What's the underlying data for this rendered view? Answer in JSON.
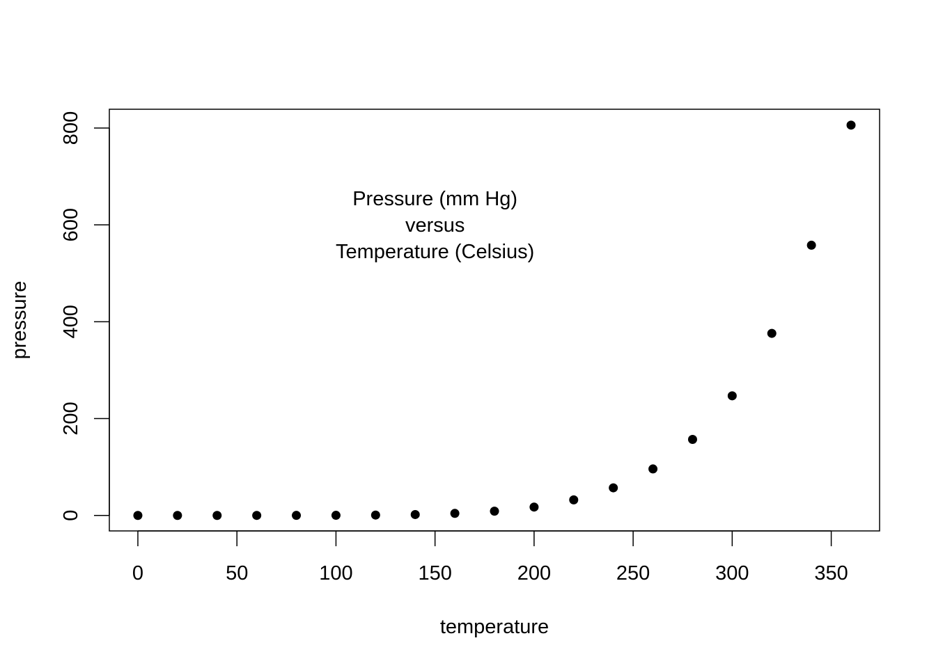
{
  "chart_data": {
    "type": "scatter",
    "title": "",
    "xlabel": "temperature",
    "ylabel": "pressure",
    "xlim": [
      -14.4,
      374.4
    ],
    "ylim": [
      -32.0,
      838.8
    ],
    "x_ticks": [
      0,
      50,
      100,
      150,
      200,
      250,
      300,
      350
    ],
    "y_ticks": [
      0,
      200,
      400,
      600,
      800
    ],
    "grid": false,
    "legend": "none",
    "point_color": "#000000",
    "annotation": [
      "Pressure (mm Hg)",
      "versus",
      "Temperature (Celsius)"
    ],
    "annotation_anchor": [
      150,
      600
    ],
    "series": [
      {
        "x": [
          0,
          20,
          40,
          60,
          80,
          100,
          120,
          140,
          160,
          180,
          200,
          220,
          240,
          260,
          280,
          300,
          320,
          340,
          360
        ],
        "y": [
          0.0002,
          0.0012,
          0.006,
          0.03,
          0.09,
          0.27,
          0.75,
          1.85,
          4.2,
          8.8,
          17.3,
          32.1,
          57,
          96,
          157,
          247,
          376,
          558,
          806
        ]
      }
    ]
  }
}
